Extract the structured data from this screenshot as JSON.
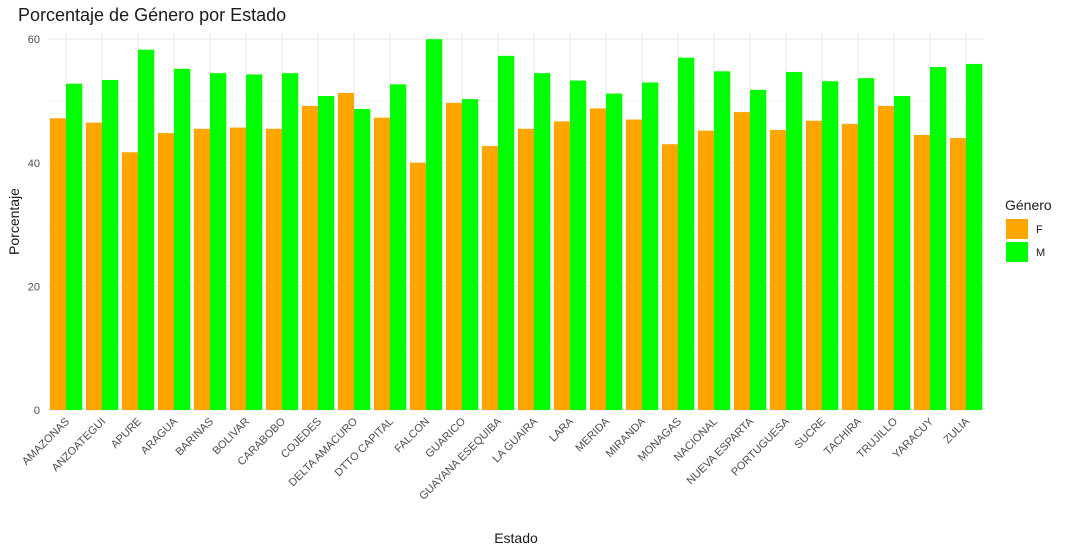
{
  "chart_data": {
    "type": "bar",
    "title": "Porcentaje de Género por Estado",
    "xlabel": "Estado",
    "ylabel": "Porcentaje",
    "ylim": [
      0,
      61
    ],
    "yticks": [
      0,
      20,
      40,
      60
    ],
    "grid": true,
    "legend": {
      "title": "Género",
      "position": "right"
    },
    "categories": [
      "AMAZONAS",
      "ANZOATEGUI",
      "APURE",
      "ARAGUA",
      "BARINAS",
      "BOLIVAR",
      "CARABOBO",
      "COJEDES",
      "DELTA AMACURO",
      "DTTO CAPITAL",
      "FALCON",
      "GUARICO",
      "GUAYANA ESEQUIBA",
      "LA GUAIRA",
      "LARA",
      "MERIDA",
      "MIRANDA",
      "MONAGAS",
      "NACIONAL",
      "NUEVA ESPARTA",
      "PORTUGUESA",
      "SUCRE",
      "TACHIRA",
      "TRUJILLO",
      "YARACUY",
      "ZULIA"
    ],
    "series": [
      {
        "name": "F",
        "color": "#FFA500",
        "values": [
          47.2,
          46.5,
          41.7,
          44.8,
          45.5,
          45.7,
          45.5,
          49.2,
          51.3,
          47.3,
          40.0,
          49.7,
          42.7,
          45.5,
          46.7,
          48.8,
          47.0,
          43.0,
          45.2,
          48.2,
          45.3,
          46.8,
          46.3,
          49.2,
          44.5,
          44.0
        ]
      },
      {
        "name": "M",
        "color": "#00FF00",
        "values": [
          52.8,
          53.4,
          58.3,
          55.2,
          54.5,
          54.3,
          54.5,
          50.8,
          48.7,
          52.7,
          60.0,
          50.3,
          57.3,
          54.5,
          53.3,
          51.2,
          53.0,
          57.0,
          54.8,
          51.8,
          54.7,
          53.2,
          53.7,
          50.8,
          55.5,
          56.0
        ]
      }
    ]
  }
}
